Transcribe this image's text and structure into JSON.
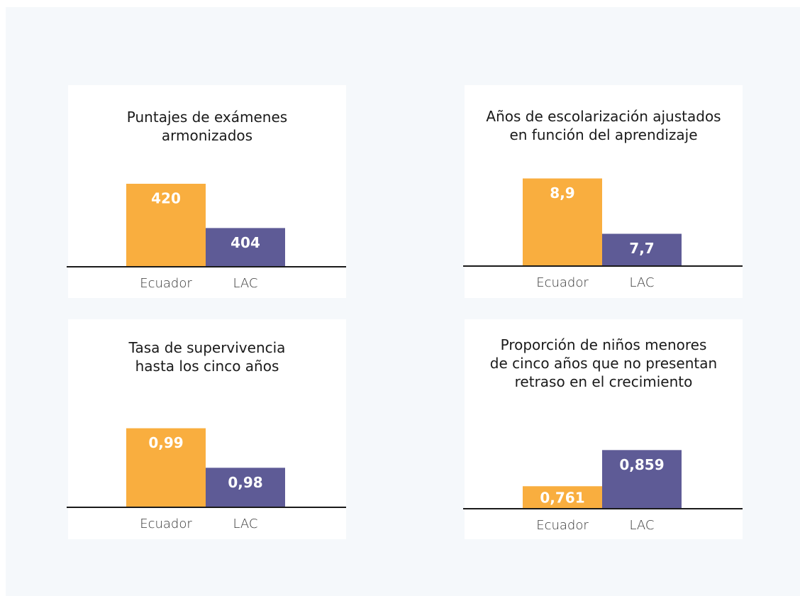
{
  "chart_data": [
    {
      "type": "bar",
      "title": [
        "Puntajes de exámenes",
        "armonizados"
      ],
      "categories": [
        "Ecuador",
        "LAC"
      ],
      "values": [
        420,
        404
      ],
      "value_labels": [
        "420",
        "404"
      ],
      "colors": [
        "#f9ae3f",
        "#5e5b96"
      ],
      "ylim": [
        390,
        430
      ]
    },
    {
      "type": "bar",
      "title": [
        "Años de escolarización ajustados",
        "en función del aprendizaje"
      ],
      "categories": [
        "Ecuador",
        "LAC"
      ],
      "values": [
        8.9,
        7.7
      ],
      "value_labels": [
        "8,9",
        "7,7"
      ],
      "colors": [
        "#f9ae3f",
        "#5e5b96"
      ],
      "ylim": [
        7,
        9.4
      ]
    },
    {
      "type": "bar",
      "title": [
        "Tasa de supervivencia",
        "hasta los cinco años"
      ],
      "categories": [
        "Ecuador",
        "LAC"
      ],
      "values": [
        0.99,
        0.98
      ],
      "value_labels": [
        "0,99",
        "0,98"
      ],
      "colors": [
        "#f9ae3f",
        "#5e5b96"
      ],
      "ylim": [
        0.97,
        0.998
      ]
    },
    {
      "type": "bar",
      "title": [
        "Proporción de niños menores",
        "de cinco años que no presentan",
        "retraso en el crecimiento"
      ],
      "categories": [
        "Ecuador",
        "LAC"
      ],
      "values": [
        0.761,
        0.859
      ],
      "value_labels": [
        "0,761",
        "0,859"
      ],
      "colors": [
        "#f9ae3f",
        "#5e5b96"
      ],
      "ylim": [
        0.7,
        1.0
      ]
    }
  ]
}
